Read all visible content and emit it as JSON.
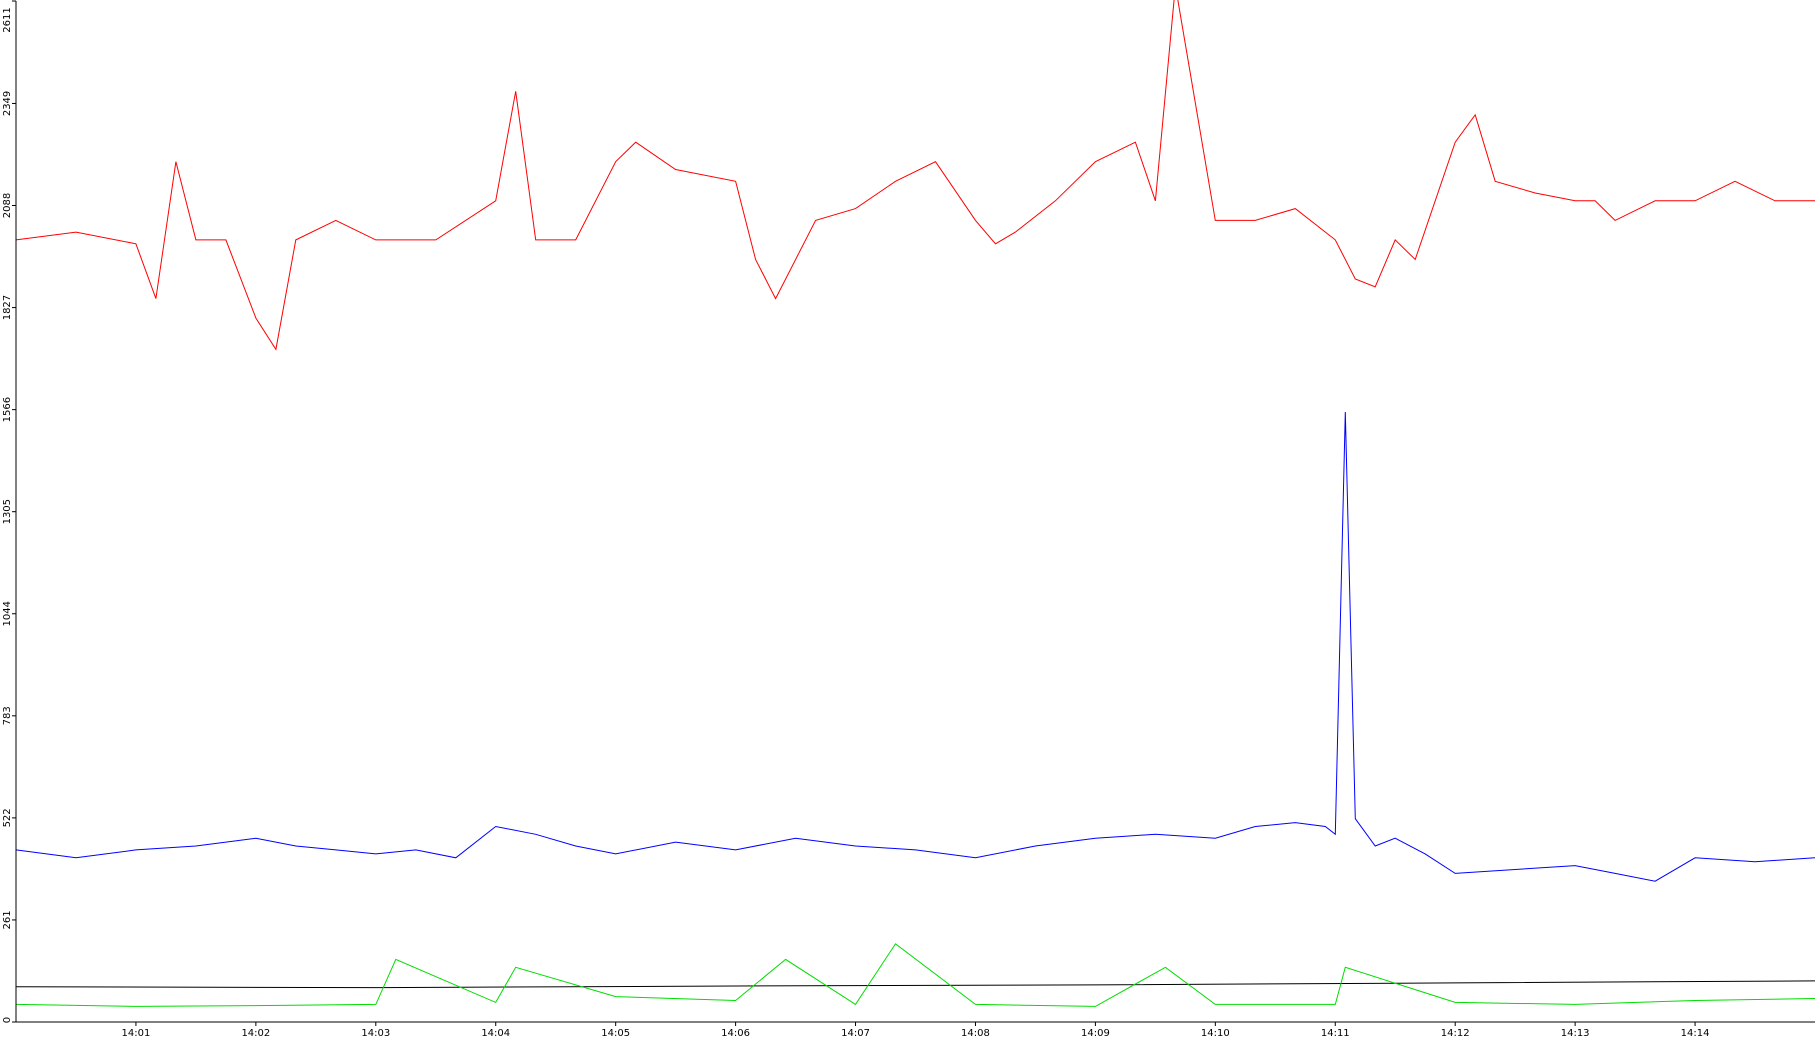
{
  "chart_data": {
    "type": "line",
    "title": "",
    "xlabel": "",
    "ylabel": "",
    "ylim": [
      0,
      2611
    ],
    "yticks": [
      0,
      261,
      522,
      783,
      1044,
      1305,
      1566,
      1827,
      2088,
      2349,
      2611
    ],
    "xlim": [
      "14:00",
      "14:15"
    ],
    "xticks": [
      "14:01",
      "14:02",
      "14:03",
      "14:04",
      "14:05",
      "14:06",
      "14:07",
      "14:08",
      "14:09",
      "14:10",
      "14:11",
      "14:12",
      "14:13",
      "14:14"
    ],
    "grid": false,
    "legend": "none",
    "series": [
      {
        "color": "#ff0000",
        "x": [
          "14:00",
          "14:00:30",
          "14:01",
          "14:01:10",
          "14:01:20",
          "14:01:30",
          "14:01:45",
          "14:02",
          "14:02:10",
          "14:02:20",
          "14:02:40",
          "14:03",
          "14:03:30",
          "14:04",
          "14:04:10",
          "14:04:20",
          "14:04:40",
          "14:05",
          "14:05:10",
          "14:05:30",
          "14:06",
          "14:06:10",
          "14:06:20",
          "14:06:40",
          "14:07",
          "14:07:20",
          "14:07:40",
          "14:08",
          "14:08:10",
          "14:08:20",
          "14:08:40",
          "14:09",
          "14:09:20",
          "14:09:30",
          "14:09:40",
          "14:10",
          "14:10:20",
          "14:10:40",
          "14:11",
          "14:11:10",
          "14:11:20",
          "14:11:30",
          "14:11:40",
          "14:12",
          "14:12:10",
          "14:12:20",
          "14:12:40",
          "14:13",
          "14:13:10",
          "14:13:20",
          "14:13:40",
          "14:14",
          "14:14:20",
          "14:14:40",
          "14:15"
        ],
        "values": [
          2000,
          2020,
          1990,
          1850,
          2200,
          2000,
          2000,
          1800,
          1720,
          2000,
          2050,
          2000,
          2000,
          2100,
          2380,
          2000,
          2000,
          2200,
          2250,
          2180,
          2150,
          1950,
          1850,
          2050,
          2080,
          2150,
          2200,
          2050,
          1990,
          2020,
          2100,
          2200,
          2250,
          2100,
          2650,
          2050,
          2050,
          2080,
          2000,
          1900,
          1880,
          2000,
          1950,
          2250,
          2320,
          2150,
          2120,
          2100,
          2100,
          2050,
          2100,
          2100,
          2150,
          2100,
          2100
        ]
      },
      {
        "color": "#0000ff",
        "x": [
          "14:00",
          "14:00:30",
          "14:01",
          "14:01:30",
          "14:02",
          "14:02:20",
          "14:02:40",
          "14:03",
          "14:03:20",
          "14:03:40",
          "14:04",
          "14:04:20",
          "14:04:40",
          "14:05",
          "14:05:30",
          "14:06",
          "14:06:30",
          "14:07",
          "14:07:30",
          "14:08",
          "14:08:30",
          "14:09",
          "14:09:30",
          "14:10",
          "14:10:20",
          "14:10:40",
          "14:10:55",
          "14:11",
          "14:11:05",
          "14:11:10",
          "14:11:20",
          "14:11:30",
          "14:11:45",
          "14:12",
          "14:12:30",
          "14:13",
          "14:13:20",
          "14:13:40",
          "14:14",
          "14:14:30",
          "14:15"
        ],
        "values": [
          440,
          420,
          440,
          450,
          470,
          450,
          440,
          430,
          440,
          420,
          500,
          480,
          450,
          430,
          460,
          440,
          470,
          450,
          440,
          420,
          450,
          470,
          480,
          470,
          500,
          510,
          500,
          480,
          1560,
          520,
          450,
          470,
          430,
          380,
          390,
          400,
          380,
          360,
          420,
          410,
          420
        ]
      },
      {
        "color": "#000000",
        "x": [
          "14:00",
          "14:03",
          "14:06",
          "14:09",
          "14:12",
          "14:15"
        ],
        "values": [
          90,
          88,
          92,
          95,
          100,
          105
        ]
      },
      {
        "color": "#00dd00",
        "x": [
          "14:00",
          "14:01",
          "14:02",
          "14:03",
          "14:03:10",
          "14:04",
          "14:04:10",
          "14:05",
          "14:06",
          "14:06:25",
          "14:07",
          "14:07:20",
          "14:08",
          "14:09",
          "14:09:35",
          "14:10",
          "14:11",
          "14:11:05",
          "14:12",
          "14:13",
          "14:14",
          "14:15"
        ],
        "values": [
          45,
          40,
          42,
          45,
          160,
          50,
          140,
          65,
          55,
          160,
          45,
          200,
          45,
          40,
          140,
          45,
          45,
          140,
          50,
          45,
          55,
          60
        ]
      }
    ]
  }
}
